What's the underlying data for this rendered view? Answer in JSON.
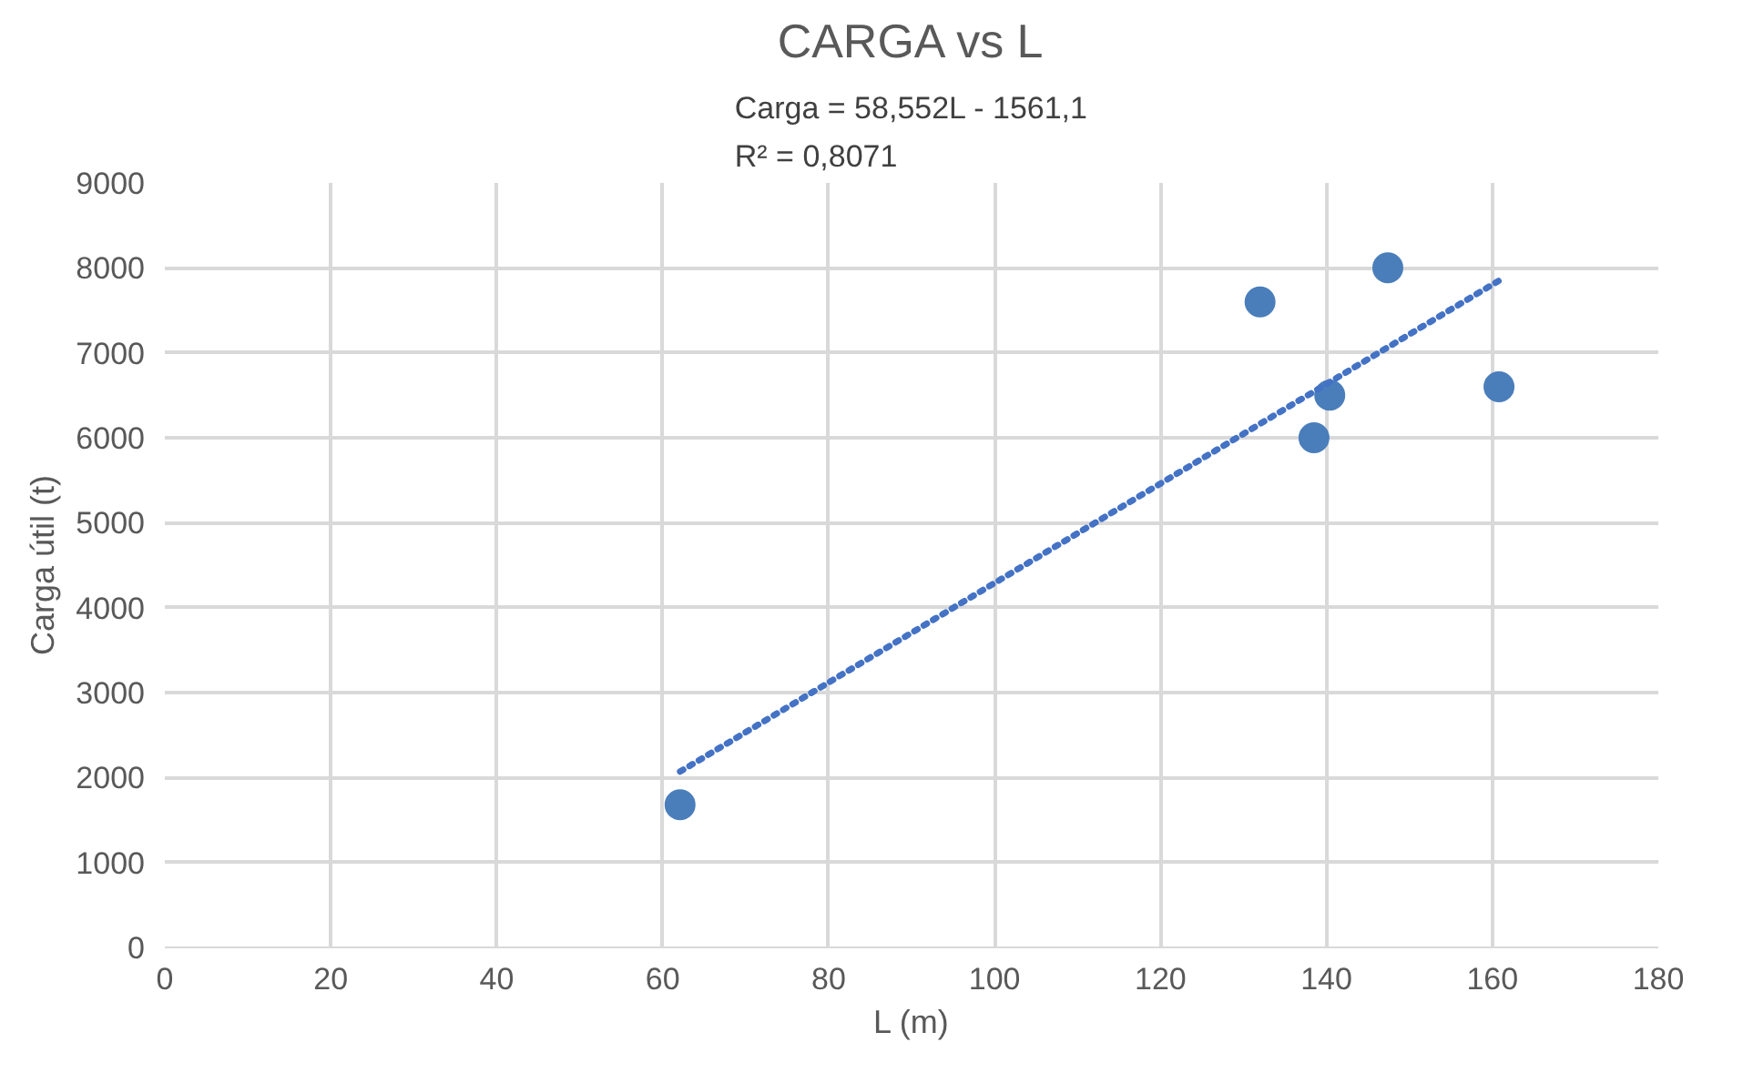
{
  "chart_data": {
    "type": "scatter",
    "title": "CARGA vs L",
    "xlabel": "L (m)",
    "ylabel": "Carga útil (t)",
    "xlim": [
      0,
      180
    ],
    "xticks": [
      0,
      20,
      40,
      60,
      80,
      100,
      120,
      140,
      160,
      180
    ],
    "ylim": [
      0,
      9000
    ],
    "yticks": [
      0,
      1000,
      2000,
      3000,
      4000,
      5000,
      6000,
      7000,
      8000,
      9000
    ],
    "grid": true,
    "legend": false,
    "marker": "circle",
    "series": [
      {
        "type": "scatter",
        "color": "#4a7ebb",
        "x": [
          62.1,
          132.0,
          147.4,
          140.4,
          138.5,
          160.8
        ],
        "values": [
          1680,
          7600,
          8000,
          6500,
          6000,
          6600
        ]
      },
      {
        "type": "line",
        "color": "#4472c4",
        "line_style": "dotted",
        "marker": "none",
        "x": [
          62.1,
          160.8
        ],
        "values": [
          2070,
          7850
        ]
      }
    ],
    "annotations": [
      "Carga = 58,552L - 1561,1\nR² = 0,8071"
    ]
  }
}
